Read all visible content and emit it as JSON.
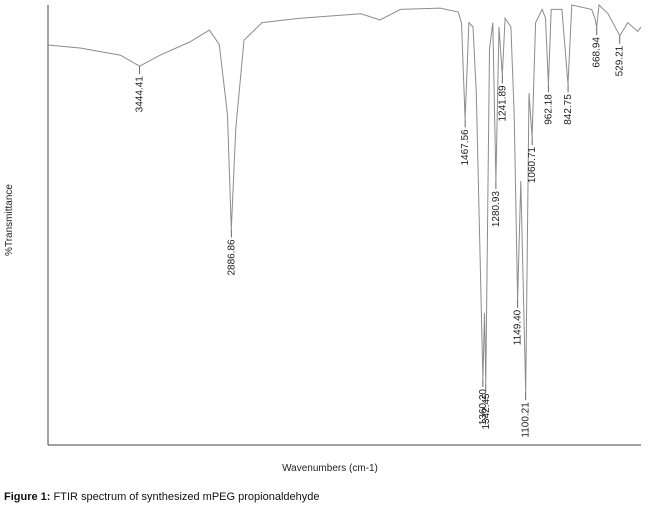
{
  "chart_data": {
    "type": "line",
    "ylabel": "%Transmittance",
    "xlabel": "Wavenumbers (cm-1)",
    "xlim": [
      4000,
      400
    ],
    "ylim": [
      0,
      100
    ],
    "series": [
      {
        "color": "#8c8c8c",
        "x": [
          4000,
          3800,
          3560,
          3444,
          3320,
          3140,
          3020,
          2960,
          2910,
          2887,
          2860,
          2810,
          2700,
          2470,
          2100,
          1985,
          1860,
          1620,
          1510,
          1490,
          1468,
          1445,
          1420,
          1400,
          1360,
          1350,
          1342,
          1320,
          1300,
          1281,
          1262,
          1242,
          1225,
          1190,
          1170,
          1149,
          1130,
          1100,
          1080,
          1061,
          1040,
          1000,
          980,
          962,
          945,
          880,
          843,
          820,
          700,
          680,
          669,
          655,
          600,
          529,
          480,
          420,
          400
        ],
        "values": [
          90.9,
          90.2,
          88.6,
          86.1,
          88.6,
          91.6,
          94.3,
          91,
          75,
          49,
          72,
          92,
          96,
          97,
          98,
          96.6,
          99,
          99.3,
          98.4,
          96,
          74,
          96,
          95,
          80,
          15,
          30,
          14,
          90,
          96,
          60,
          95,
          84,
          97,
          95,
          75,
          33,
          60,
          12,
          80,
          70,
          96,
          99,
          97,
          82,
          99,
          99,
          82,
          100,
          99,
          97,
          95,
          100,
          98,
          93,
          96,
          94,
          95
        ]
      }
    ],
    "peaks": {
      "x": [
        3444.41,
        2886.86,
        1467.56,
        1360.2,
        1342.45,
        1280.93,
        1241.89,
        1149.4,
        1100.21,
        1060.71,
        962.18,
        842.75,
        668.94,
        529.21
      ],
      "values": [
        86.1,
        49,
        74,
        15,
        14,
        60,
        84,
        33,
        12,
        70,
        82,
        82,
        95,
        93
      ],
      "value_labels": [
        "3444.41",
        "2886.86",
        "1467.56",
        "1360.20",
        "1342.45",
        "1280.93",
        "1241.89",
        "1149.40",
        "1100.21",
        "1060.71",
        "962.18",
        "842.75",
        "668.94",
        "529.21"
      ]
    }
  },
  "caption": {
    "label": "Figure 1:",
    "text": "FTIR spectrum of synthesized mPEG propionaldehyde"
  }
}
